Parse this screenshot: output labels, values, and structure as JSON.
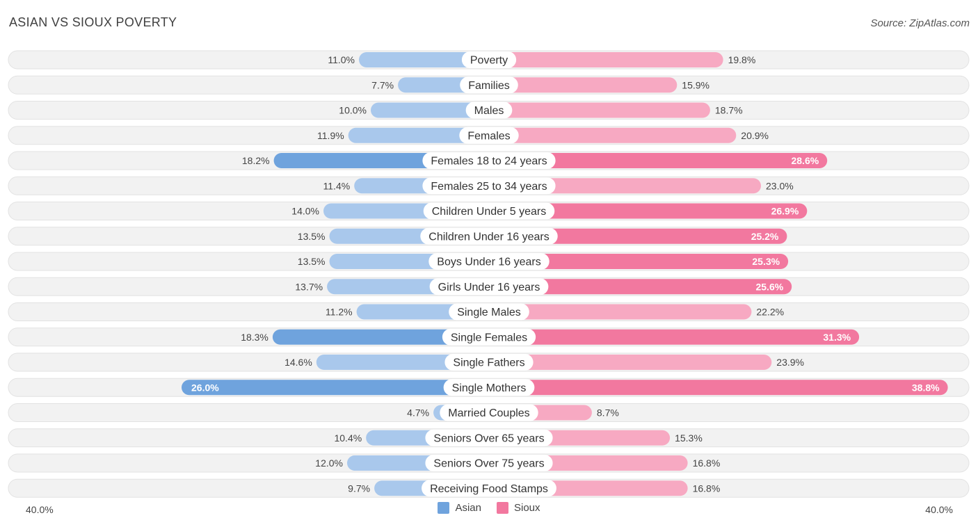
{
  "header": {
    "title": "ASIAN VS SIOUX POVERTY",
    "source": "Source: ZipAtlas.com"
  },
  "colors": {
    "asian": "#6fa3dd",
    "asian_light": "#a9c8ec",
    "sioux": "#f2789f",
    "sioux_light": "#f7a9c2",
    "row_bg": "#f2f2f2"
  },
  "chart_data": {
    "type": "bar",
    "title": "ASIAN VS SIOUX POVERTY",
    "orientation": "horizontal-diverging",
    "categories": [
      "Poverty",
      "Families",
      "Males",
      "Females",
      "Females 18 to 24 years",
      "Females 25 to 34 years",
      "Children Under 5 years",
      "Children Under 16 years",
      "Boys Under 16 years",
      "Girls Under 16 years",
      "Single Males",
      "Single Females",
      "Single Fathers",
      "Single Mothers",
      "Married Couples",
      "Seniors Over 65 years",
      "Seniors Over 75 years",
      "Receiving Food Stamps"
    ],
    "series": [
      {
        "name": "Asian",
        "values": [
          11.0,
          7.7,
          10.0,
          11.9,
          18.2,
          11.4,
          14.0,
          13.5,
          13.5,
          13.7,
          11.2,
          18.3,
          14.6,
          26.0,
          4.7,
          10.4,
          12.0,
          9.7
        ]
      },
      {
        "name": "Sioux",
        "values": [
          19.8,
          15.9,
          18.7,
          20.9,
          28.6,
          23.0,
          26.9,
          25.2,
          25.3,
          25.6,
          22.2,
          31.3,
          23.9,
          38.8,
          8.7,
          15.3,
          16.8,
          16.8
        ]
      }
    ],
    "value_labels": {
      "Asian": [
        "11.0%",
        "7.7%",
        "10.0%",
        "11.9%",
        "18.2%",
        "11.4%",
        "14.0%",
        "13.5%",
        "13.5%",
        "13.7%",
        "11.2%",
        "18.3%",
        "14.6%",
        "26.0%",
        "4.7%",
        "10.4%",
        "12.0%",
        "9.7%"
      ],
      "Sioux": [
        "19.8%",
        "15.9%",
        "18.7%",
        "20.9%",
        "28.6%",
        "23.0%",
        "26.9%",
        "25.2%",
        "25.3%",
        "25.6%",
        "22.2%",
        "31.3%",
        "23.9%",
        "38.8%",
        "8.7%",
        "15.3%",
        "16.8%",
        "16.8%"
      ]
    },
    "xlim": [
      -40,
      40
    ],
    "axis_labels": {
      "left": "40.0%",
      "right": "40.0%"
    },
    "legend": [
      "Asian",
      "Sioux"
    ],
    "legend_position": "bottom-center"
  }
}
